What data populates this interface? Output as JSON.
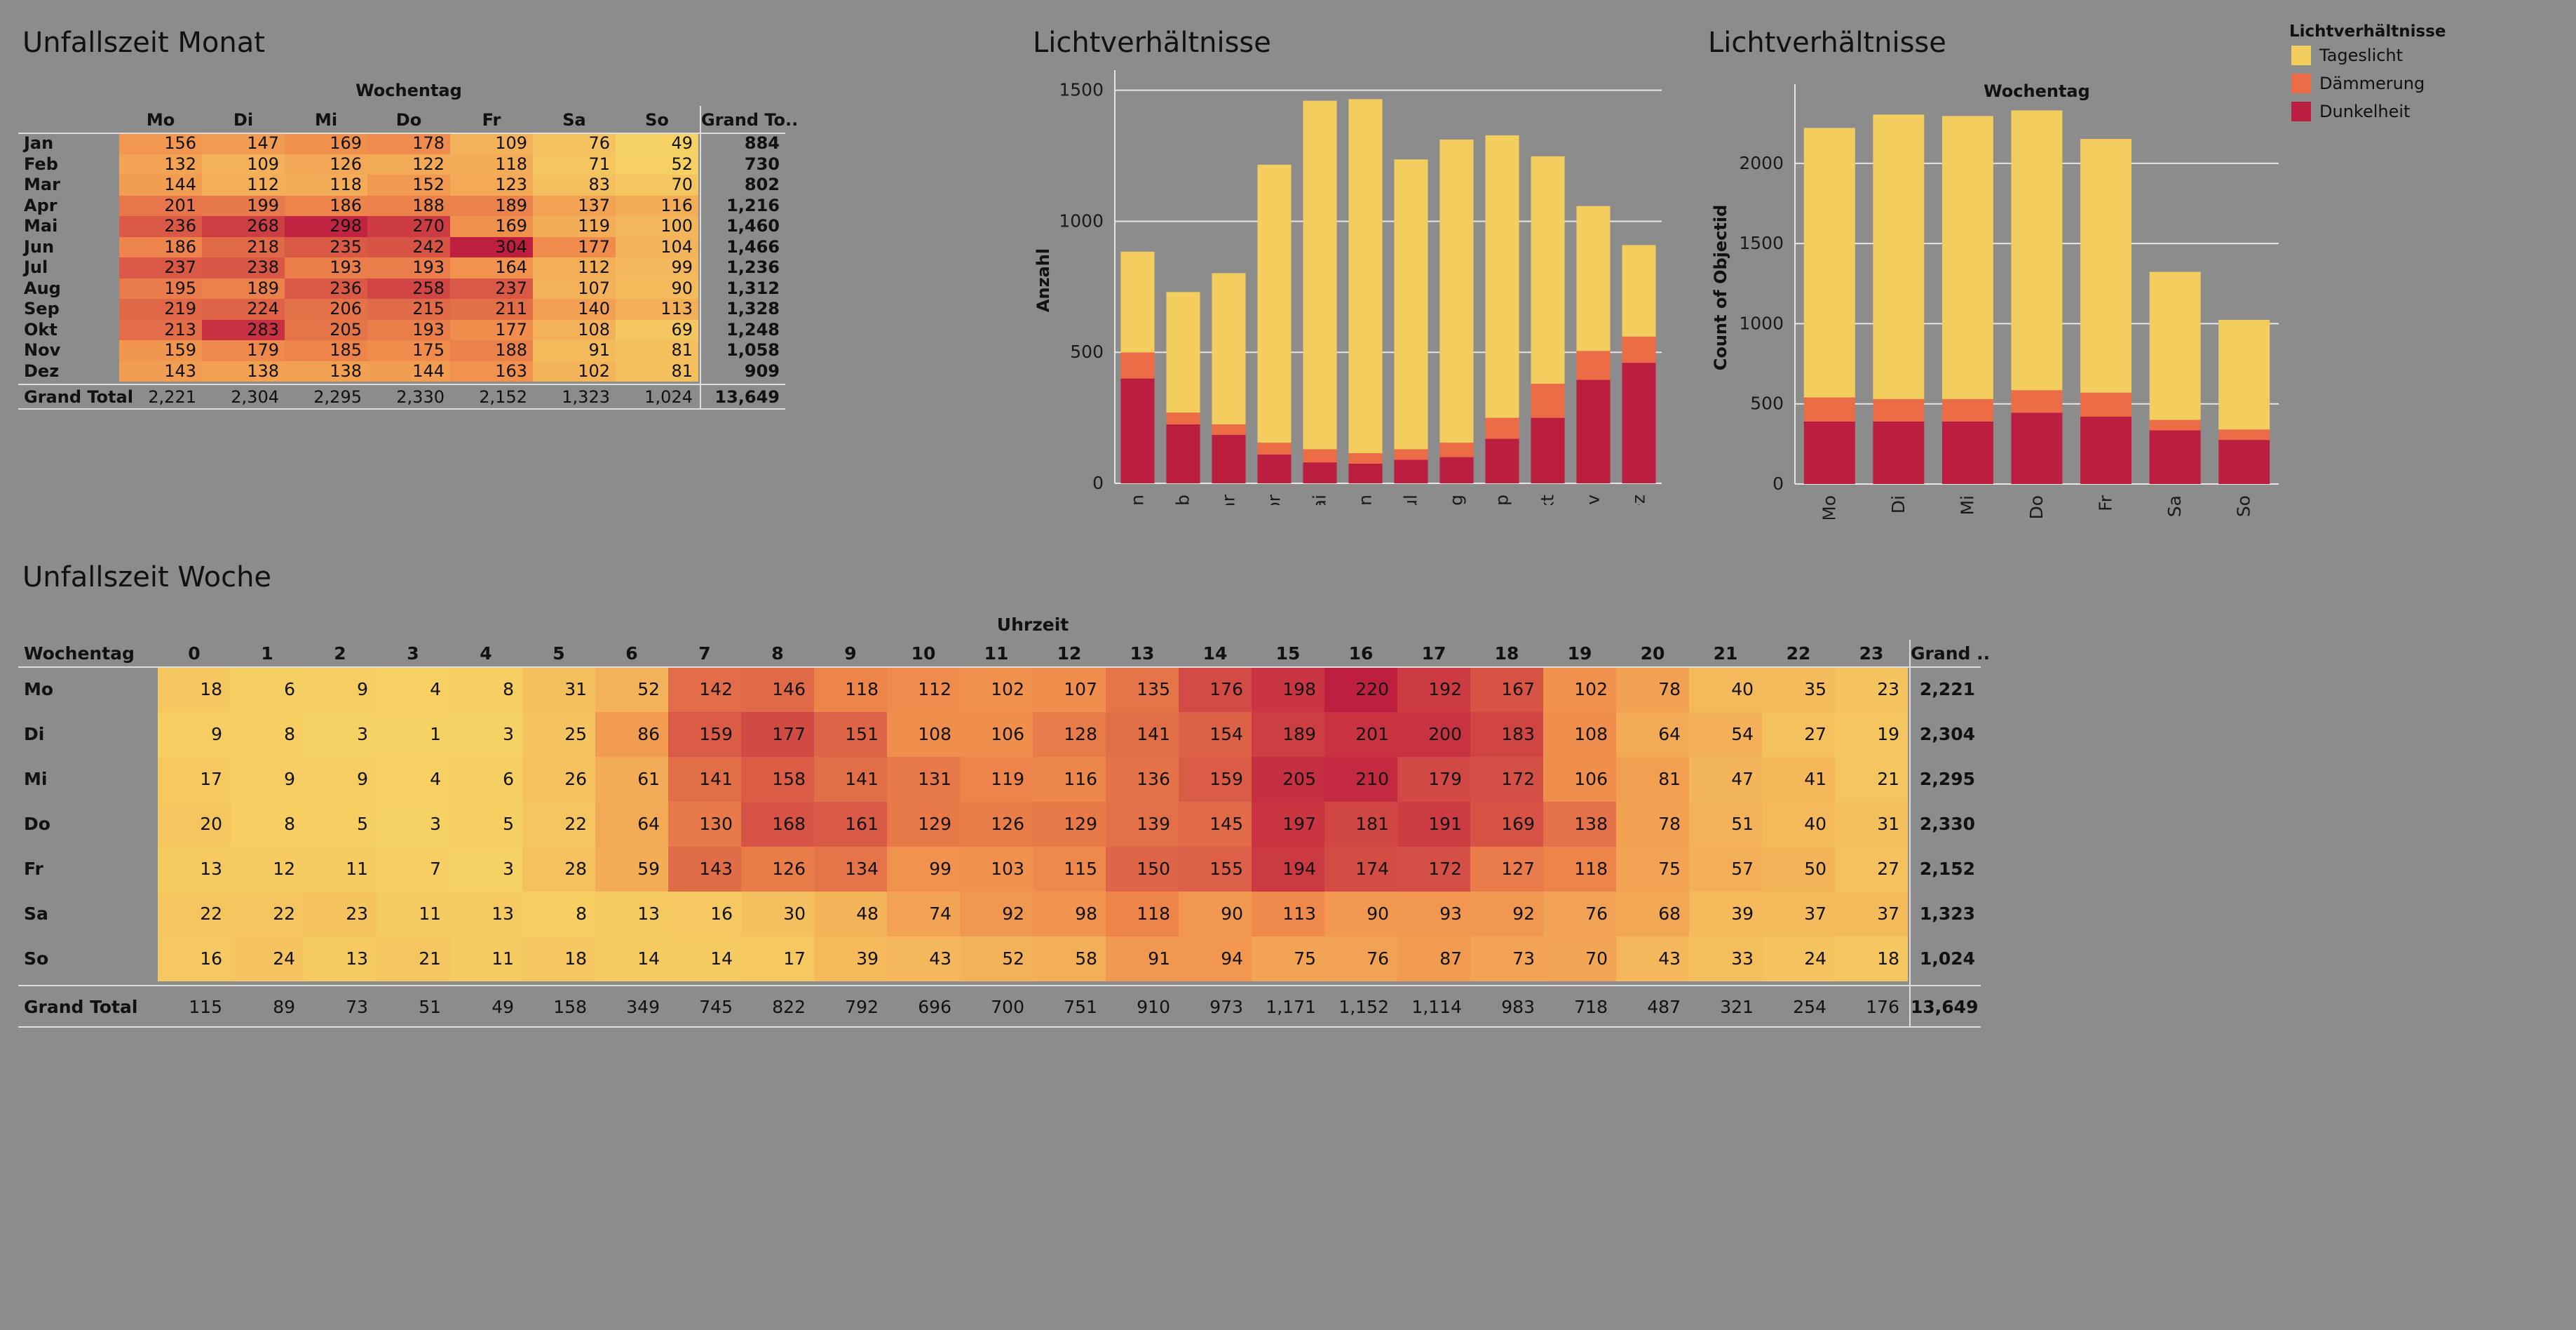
{
  "titles": {
    "monat": "Unfallszeit Monat",
    "licht1": "Lichtverhältnisse",
    "licht2": "Lichtverhältnisse",
    "woche": "Unfallszeit Woche"
  },
  "legend": {
    "title": "Lichtverhältnisse",
    "items": [
      {
        "label": "Tageslicht",
        "color": "#f4cd5f"
      },
      {
        "label": "Dämmerung",
        "color": "#ec6d45"
      },
      {
        "label": "Dunkelheit",
        "color": "#bc1e3f"
      }
    ]
  },
  "colors": {
    "background": "#8c8c8c",
    "heat_low": "#f6d264",
    "heat_mid": "#f08c4c",
    "heat_high": "#bf1f3f"
  },
  "chart_data": [
    {
      "type": "heatmap",
      "title": "Unfallszeit Monat",
      "col_header_title": "Wochentag",
      "columns": [
        "Mo",
        "Di",
        "Mi",
        "Do",
        "Fr",
        "Sa",
        "So"
      ],
      "total_col_label": "Grand To..",
      "rows": [
        "Jan",
        "Feb",
        "Mar",
        "Apr",
        "Mai",
        "Jun",
        "Jul",
        "Aug",
        "Sep",
        "Okt",
        "Nov",
        "Dez"
      ],
      "values": [
        [
          156,
          147,
          169,
          178,
          109,
          76,
          49
        ],
        [
          132,
          109,
          126,
          122,
          118,
          71,
          52
        ],
        [
          144,
          112,
          118,
          152,
          123,
          83,
          70
        ],
        [
          201,
          199,
          186,
          188,
          189,
          137,
          116
        ],
        [
          236,
          268,
          298,
          270,
          169,
          119,
          100
        ],
        [
          186,
          218,
          235,
          242,
          304,
          177,
          104
        ],
        [
          237,
          238,
          193,
          193,
          164,
          112,
          99
        ],
        [
          195,
          189,
          236,
          258,
          237,
          107,
          90
        ],
        [
          219,
          224,
          206,
          215,
          211,
          140,
          113
        ],
        [
          213,
          283,
          205,
          193,
          177,
          108,
          69
        ],
        [
          159,
          179,
          185,
          175,
          188,
          91,
          81
        ],
        [
          143,
          138,
          138,
          144,
          163,
          102,
          81
        ]
      ],
      "row_totals": [
        "884",
        "730",
        "802",
        "1,216",
        "1,460",
        "1,466",
        "1,236",
        "1,312",
        "1,328",
        "1,248",
        "1,058",
        "909"
      ],
      "total_row_label": "Grand Total",
      "col_totals": [
        "2,221",
        "2,304",
        "2,295",
        "2,330",
        "2,152",
        "1,323",
        "1,024"
      ],
      "grand_total": "13,649"
    },
    {
      "type": "bar",
      "stacked": true,
      "title": "Lichtverhältnisse",
      "ylabel": "Anzahl",
      "xlabel": "",
      "ylim": [
        0,
        1550
      ],
      "yticks": [
        0,
        500,
        1000,
        1500
      ],
      "categories": [
        "Jan",
        "Feb",
        "Mar",
        "Apr",
        "Mai",
        "Jun",
        "Jul",
        "Aug",
        "Sep",
        "Okt",
        "Nov",
        "Dez"
      ],
      "series": [
        {
          "name": "Dunkelheit",
          "values": [
            400,
            225,
            185,
            110,
            80,
            75,
            90,
            100,
            170,
            250,
            395,
            460
          ]
        },
        {
          "name": "Dämmerung",
          "values": [
            100,
            45,
            40,
            45,
            50,
            40,
            40,
            55,
            80,
            130,
            110,
            100
          ]
        },
        {
          "name": "Tageslicht",
          "values": [
            384,
            460,
            577,
            1061,
            1330,
            1351,
            1106,
            1157,
            1078,
            868,
            553,
            349
          ]
        }
      ]
    },
    {
      "type": "bar",
      "stacked": true,
      "title": "Lichtverhältnisse",
      "xlabel": "Wochentag",
      "ylabel": "Count of Objectid",
      "ylim": [
        0,
        2450
      ],
      "yticks": [
        0,
        500,
        1000,
        1500,
        2000
      ],
      "categories": [
        "Mo",
        "Di",
        "Mi",
        "Do",
        "Fr",
        "Sa",
        "So"
      ],
      "series": [
        {
          "name": "Dunkelheit",
          "values": [
            390,
            390,
            390,
            445,
            420,
            335,
            275
          ]
        },
        {
          "name": "Dämmerung",
          "values": [
            150,
            140,
            140,
            140,
            150,
            65,
            65
          ]
        },
        {
          "name": "Tageslicht",
          "values": [
            1681,
            1774,
            1765,
            1745,
            1582,
            923,
            684
          ]
        }
      ]
    },
    {
      "type": "heatmap",
      "title": "Unfallszeit Woche",
      "col_header_title": "Uhrzeit",
      "row_header_label": "Wochentag",
      "columns": [
        "0",
        "1",
        "2",
        "3",
        "4",
        "5",
        "6",
        "7",
        "8",
        "9",
        "10",
        "11",
        "12",
        "13",
        "14",
        "15",
        "16",
        "17",
        "18",
        "19",
        "20",
        "21",
        "22",
        "23"
      ],
      "total_col_label": "Grand ..",
      "rows": [
        "Mo",
        "Di",
        "Mi",
        "Do",
        "Fr",
        "Sa",
        "So"
      ],
      "values": [
        [
          18,
          6,
          9,
          4,
          8,
          31,
          52,
          142,
          146,
          118,
          112,
          102,
          107,
          135,
          176,
          198,
          220,
          192,
          167,
          102,
          78,
          40,
          35,
          23
        ],
        [
          9,
          8,
          3,
          1,
          3,
          25,
          86,
          159,
          177,
          151,
          108,
          106,
          128,
          141,
          154,
          189,
          201,
          200,
          183,
          108,
          64,
          54,
          27,
          19
        ],
        [
          17,
          9,
          9,
          4,
          6,
          26,
          61,
          141,
          158,
          141,
          131,
          119,
          116,
          136,
          159,
          205,
          210,
          179,
          172,
          106,
          81,
          47,
          41,
          21
        ],
        [
          20,
          8,
          5,
          3,
          5,
          22,
          64,
          130,
          168,
          161,
          129,
          126,
          129,
          139,
          145,
          197,
          181,
          191,
          169,
          138,
          78,
          51,
          40,
          31
        ],
        [
          13,
          12,
          11,
          7,
          3,
          28,
          59,
          143,
          126,
          134,
          99,
          103,
          115,
          150,
          155,
          194,
          174,
          172,
          127,
          118,
          75,
          57,
          50,
          27
        ],
        [
          22,
          22,
          23,
          11,
          13,
          8,
          13,
          16,
          30,
          48,
          74,
          92,
          98,
          118,
          90,
          113,
          90,
          93,
          92,
          76,
          68,
          39,
          37,
          37
        ],
        [
          16,
          24,
          13,
          21,
          11,
          18,
          14,
          14,
          17,
          39,
          43,
          52,
          58,
          91,
          94,
          75,
          76,
          87,
          73,
          70,
          43,
          33,
          24,
          18
        ]
      ],
      "row_totals": [
        "2,221",
        "2,304",
        "2,295",
        "2,330",
        "2,152",
        "1,323",
        "1,024"
      ],
      "total_row_label": "Grand Total",
      "col_totals": [
        "115",
        "89",
        "73",
        "51",
        "49",
        "158",
        "349",
        "745",
        "822",
        "792",
        "696",
        "700",
        "751",
        "910",
        "973",
        "1,171",
        "1,152",
        "1,114",
        "983",
        "718",
        "487",
        "321",
        "254",
        "176"
      ],
      "grand_total": "13,649"
    }
  ]
}
